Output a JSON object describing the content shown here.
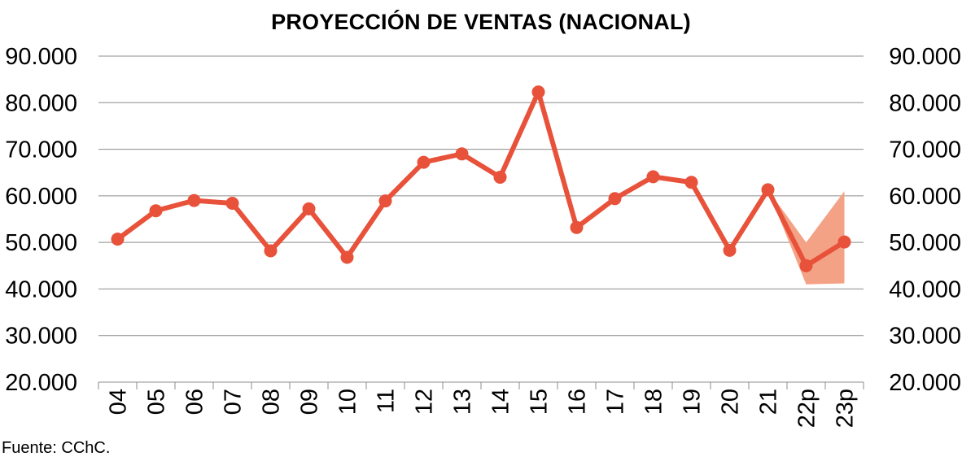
{
  "title": "PROYECCIÓN DE VENTAS (NACIONAL)",
  "source": "Fuente:  CChC.",
  "colors": {
    "line": "#e8513a",
    "band": "#f4a286",
    "grid": "#8c8c8c",
    "axis": "#8c8c8c"
  },
  "chart_data": {
    "type": "line",
    "title": "PROYECCIÓN DE VENTAS (NACIONAL)",
    "categories": [
      "04",
      "05",
      "06",
      "07",
      "08",
      "09",
      "10",
      "11",
      "12",
      "13",
      "14",
      "15",
      "16",
      "17",
      "18",
      "19",
      "20",
      "21",
      "22p",
      "23p"
    ],
    "series": [
      {
        "values": [
          50700,
          56800,
          59000,
          58400,
          48200,
          57200,
          46800,
          58900,
          67200,
          69000,
          64000,
          82300,
          53200,
          59400,
          64100,
          62900,
          48300,
          61300,
          45000,
          50100
        ]
      }
    ],
    "projection_band": {
      "categories": [
        "21",
        "22p",
        "23p"
      ],
      "lower": [
        61300,
        41000,
        41200
      ],
      "upper": [
        61300,
        50000,
        61000
      ]
    },
    "ylim": [
      20000,
      90000
    ],
    "y_ticks": [
      "20.000",
      "30.000",
      "40.000",
      "50.000",
      "60.000",
      "70.000",
      "80.000",
      "90.000"
    ],
    "y_tick_values": [
      20000,
      30000,
      40000,
      50000,
      60000,
      70000,
      80000,
      90000
    ],
    "secondary_y_axis": true,
    "grid": true,
    "legend": "none"
  }
}
